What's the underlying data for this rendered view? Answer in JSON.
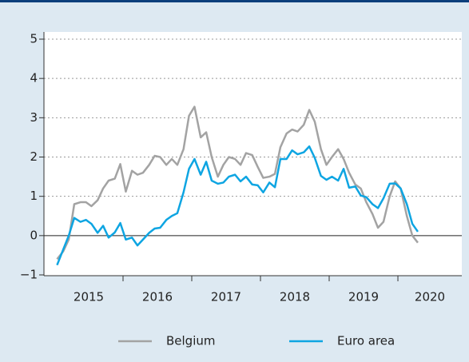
{
  "chart_data": {
    "type": "line",
    "x": [
      2015.04,
      2015.13,
      2015.21,
      2015.29,
      2015.38,
      2015.46,
      2015.54,
      2015.63,
      2015.71,
      2015.79,
      2015.88,
      2015.96,
      2016.04,
      2016.13,
      2016.21,
      2016.29,
      2016.38,
      2016.46,
      2016.54,
      2016.63,
      2016.71,
      2016.79,
      2016.88,
      2016.96,
      2017.04,
      2017.13,
      2017.21,
      2017.29,
      2017.38,
      2017.46,
      2017.54,
      2017.63,
      2017.71,
      2017.79,
      2017.88,
      2017.96,
      2018.04,
      2018.13,
      2018.21,
      2018.29,
      2018.38,
      2018.46,
      2018.54,
      2018.63,
      2018.71,
      2018.79,
      2018.88,
      2018.96,
      2019.04,
      2019.13,
      2019.21,
      2019.29,
      2019.38,
      2019.46,
      2019.54,
      2019.63,
      2019.71,
      2019.79,
      2019.88,
      2019.96,
      2020.04,
      2020.13,
      2020.21,
      2020.29
    ],
    "series": [
      {
        "name": "Belgium",
        "color": "#a3a3a3",
        "values": [
          -0.6,
          -0.4,
          -0.1,
          0.8,
          0.85,
          0.85,
          0.75,
          0.9,
          1.2,
          1.4,
          1.45,
          1.82,
          1.12,
          1.65,
          1.55,
          1.6,
          1.8,
          2.03,
          2.0,
          1.8,
          1.95,
          1.8,
          2.2,
          3.05,
          3.28,
          2.5,
          2.63,
          2.0,
          1.5,
          1.8,
          2.0,
          1.95,
          1.8,
          2.1,
          2.05,
          1.75,
          1.47,
          1.5,
          1.57,
          2.25,
          2.6,
          2.7,
          2.65,
          2.82,
          3.2,
          2.9,
          2.2,
          1.8,
          2.0,
          2.2,
          1.95,
          1.6,
          1.3,
          1.2,
          0.85,
          0.55,
          0.2,
          0.35,
          1.0,
          1.38,
          1.2,
          0.5,
          0.0,
          -0.18
        ]
      },
      {
        "name": "Euro area",
        "color": "#0ea5e2",
        "values": [
          -0.75,
          -0.35,
          0.0,
          0.45,
          0.35,
          0.4,
          0.3,
          0.07,
          0.25,
          -0.05,
          0.08,
          0.32,
          -0.1,
          -0.05,
          -0.25,
          -0.1,
          0.07,
          0.18,
          0.2,
          0.4,
          0.5,
          0.57,
          1.1,
          1.7,
          1.95,
          1.55,
          1.88,
          1.4,
          1.32,
          1.35,
          1.5,
          1.55,
          1.38,
          1.5,
          1.3,
          1.28,
          1.1,
          1.35,
          1.23,
          1.95,
          1.95,
          2.17,
          2.07,
          2.12,
          2.27,
          1.98,
          1.52,
          1.42,
          1.5,
          1.4,
          1.7,
          1.22,
          1.25,
          1.02,
          0.98,
          0.8,
          0.7,
          0.95,
          1.32,
          1.33,
          1.2,
          0.8,
          0.3,
          0.1
        ]
      }
    ],
    "year_labels": [
      "2015",
      "2016",
      "2017",
      "2018",
      "2019",
      "2020"
    ],
    "xlim": [
      2015,
      2020.93
    ],
    "xticks": [
      2016,
      2017,
      2018,
      2019,
      2020
    ],
    "ylim": [
      -1,
      5
    ],
    "yticks": [
      {
        "value": -1,
        "label": "−1"
      },
      0,
      1,
      2,
      3,
      4,
      5
    ],
    "grid": true,
    "legend": "bottom"
  }
}
